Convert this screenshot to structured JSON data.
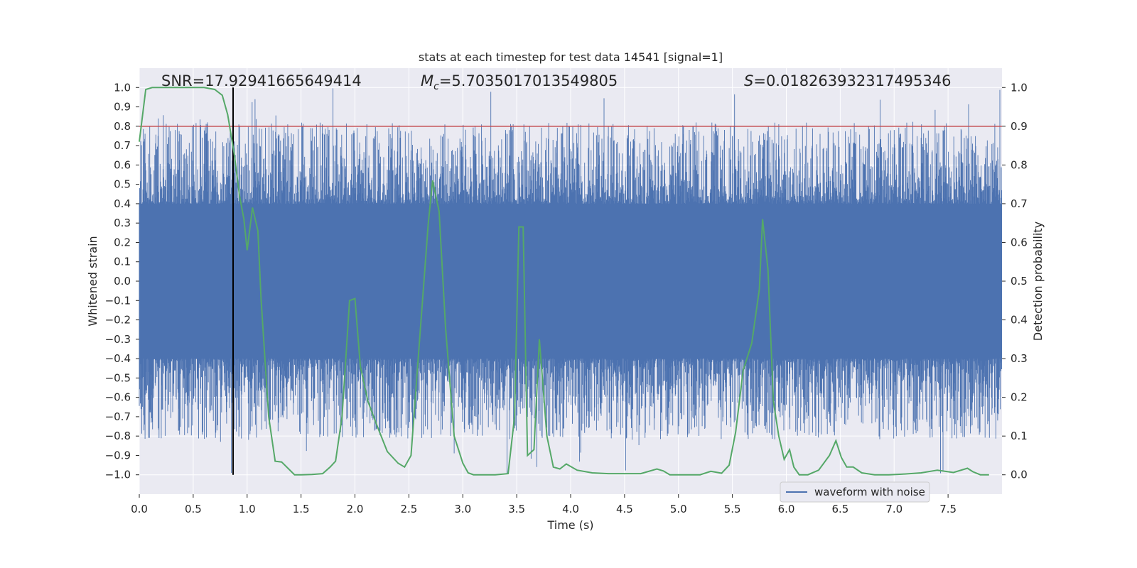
{
  "chart_data": {
    "type": "line",
    "title": "stats at each timestep for test data 14541 [signal=1]",
    "xlabel": "Time (s)",
    "ylabel_left": "Whitened strain",
    "ylabel_right": "Detection probability",
    "xlim": [
      0.0,
      8.0
    ],
    "ylim_left": [
      -1.1,
      1.1
    ],
    "ylim_right": [
      -0.05,
      1.05
    ],
    "x_ticks": [
      "0.0",
      "0.5",
      "1.0",
      "1.5",
      "2.0",
      "2.5",
      "3.0",
      "3.5",
      "4.0",
      "4.5",
      "5.0",
      "5.5",
      "6.0",
      "6.5",
      "7.0",
      "7.5"
    ],
    "y_left_ticks": [
      "1.0",
      "0.9",
      "0.8",
      "0.7",
      "0.6",
      "0.5",
      "0.4",
      "0.3",
      "0.2",
      "0.1",
      "0.0",
      "-0.1",
      "-0.2",
      "-0.3",
      "-0.4",
      "-0.5",
      "-0.6",
      "-0.7",
      "-0.8",
      "-0.9",
      "-1.0"
    ],
    "y_right_ticks": [
      "1.0",
      "0.9",
      "0.8",
      "0.7",
      "0.6",
      "0.5",
      "0.4",
      "0.3",
      "0.2",
      "0.1",
      "0.0"
    ],
    "grid": true,
    "legend": {
      "placement": "lower-right",
      "entries": [
        "waveform with noise"
      ]
    },
    "annotations": {
      "snr_prefix": "SNR=",
      "snr_value": "17.92941665649414",
      "mc_symbol": "M",
      "mc_subscript": "c",
      "mc_value": "=5.7035017013549805",
      "s_symbol": "S",
      "s_value": "=0.018263932317495346"
    },
    "threshold_line": {
      "axis": "right",
      "y": 0.9,
      "color": "#c44e52"
    },
    "event_marker": {
      "x": 0.87,
      "y_range": [
        -1.0,
        1.0
      ],
      "color": "#000000"
    },
    "series": [
      {
        "name": "waveform with noise",
        "axis": "left",
        "color": "#4c72b0",
        "style": "dense noise band",
        "envelope_core": 0.4,
        "max_positive_peak": 1.0,
        "max_negative_peak": -1.0,
        "x_range": [
          0.0,
          8.0
        ]
      },
      {
        "name": "detection probability",
        "axis": "right",
        "color": "#55a868",
        "x": [
          0.0,
          0.06,
          0.12,
          0.2,
          0.3,
          0.45,
          0.6,
          0.7,
          0.77,
          0.82,
          0.88,
          0.93,
          0.97,
          1.0,
          1.05,
          1.1,
          1.13,
          1.2,
          1.26,
          1.32,
          1.44,
          1.5,
          1.6,
          1.7,
          1.77,
          1.82,
          1.88,
          1.95,
          2.0,
          2.05,
          2.12,
          2.2,
          2.3,
          2.4,
          2.46,
          2.52,
          2.6,
          2.68,
          2.72,
          2.78,
          2.84,
          2.92,
          3.0,
          3.05,
          3.1,
          3.2,
          3.3,
          3.42,
          3.48,
          3.52,
          3.56,
          3.6,
          3.66,
          3.71,
          3.78,
          3.84,
          3.9,
          3.96,
          4.06,
          4.2,
          4.35,
          4.5,
          4.65,
          4.8,
          4.86,
          4.92,
          5.05,
          5.2,
          5.3,
          5.4,
          5.47,
          5.53,
          5.6,
          5.68,
          5.75,
          5.78,
          5.83,
          5.88,
          5.93,
          5.98,
          6.03,
          6.07,
          6.12,
          6.2,
          6.3,
          6.4,
          6.46,
          6.51,
          6.56,
          6.62,
          6.7,
          6.82,
          6.95,
          7.1,
          7.25,
          7.4,
          7.55,
          7.68,
          7.73,
          7.8,
          7.88
        ],
        "values": [
          0.86,
          0.995,
          1.0,
          1.0,
          1.0,
          1.0,
          1.0,
          0.995,
          0.98,
          0.93,
          0.83,
          0.72,
          0.66,
          0.58,
          0.69,
          0.63,
          0.45,
          0.15,
          0.035,
          0.033,
          0.0,
          0.0,
          0.001,
          0.003,
          0.02,
          0.035,
          0.15,
          0.45,
          0.455,
          0.28,
          0.19,
          0.13,
          0.06,
          0.03,
          0.02,
          0.05,
          0.35,
          0.65,
          0.76,
          0.68,
          0.38,
          0.1,
          0.03,
          0.005,
          0.0,
          0.0,
          0.0,
          0.003,
          0.15,
          0.64,
          0.64,
          0.05,
          0.065,
          0.35,
          0.1,
          0.02,
          0.015,
          0.028,
          0.012,
          0.005,
          0.003,
          0.003,
          0.003,
          0.015,
          0.01,
          0.0,
          0.0,
          0.0,
          0.009,
          0.004,
          0.025,
          0.11,
          0.27,
          0.34,
          0.48,
          0.66,
          0.53,
          0.19,
          0.1,
          0.04,
          0.065,
          0.02,
          0.0,
          0.0,
          0.012,
          0.05,
          0.088,
          0.045,
          0.02,
          0.02,
          0.005,
          0.0,
          0.0,
          0.002,
          0.005,
          0.012,
          0.006,
          0.017,
          0.008,
          0.0,
          0.0
        ]
      }
    ]
  }
}
